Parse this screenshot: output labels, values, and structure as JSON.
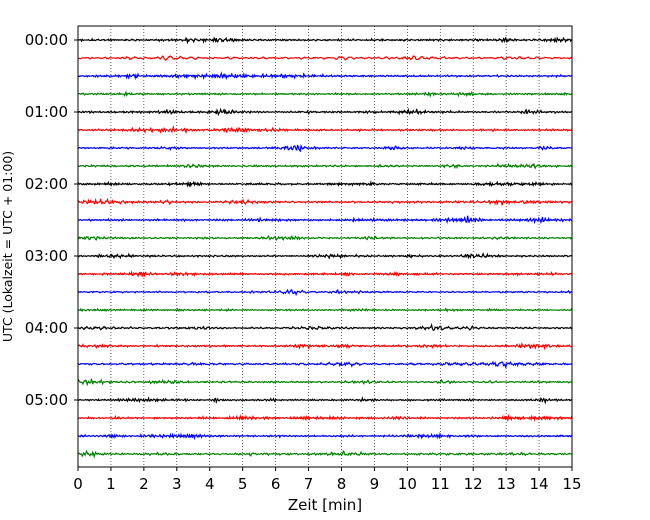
{
  "chart_data": {
    "type": "line",
    "title": "",
    "xlabel": "Zeit  [min]",
    "ylabel": "UTC (Lokalzeit = UTC + 01:00)",
    "xlim": [
      0,
      15
    ],
    "x_ticks": [
      0,
      1,
      2,
      3,
      4,
      5,
      6,
      7,
      8,
      9,
      10,
      11,
      12,
      13,
      14,
      15
    ],
    "x_tick_labels": [
      "0",
      "1",
      "2",
      "3",
      "4",
      "5",
      "6",
      "7",
      "8",
      "9",
      "10",
      "11",
      "12",
      "13",
      "14",
      "15"
    ],
    "y_tick_labels": [
      "00:00",
      "01:00",
      "02:00",
      "03:00",
      "04:00",
      "05:00"
    ],
    "grid": "vertical dotted",
    "trace_interval_min": 15,
    "trace_count": 24,
    "trace_colors": [
      "#000000",
      "#ff0000",
      "#0000ff",
      "#008000"
    ],
    "series": [
      {
        "start": "00:00",
        "color": "#000000"
      },
      {
        "start": "00:15",
        "color": "#ff0000"
      },
      {
        "start": "00:30",
        "color": "#0000ff"
      },
      {
        "start": "00:45",
        "color": "#008000"
      },
      {
        "start": "01:00",
        "color": "#000000"
      },
      {
        "start": "01:15",
        "color": "#ff0000"
      },
      {
        "start": "01:30",
        "color": "#0000ff"
      },
      {
        "start": "01:45",
        "color": "#008000"
      },
      {
        "start": "02:00",
        "color": "#000000"
      },
      {
        "start": "02:15",
        "color": "#ff0000"
      },
      {
        "start": "02:30",
        "color": "#0000ff"
      },
      {
        "start": "02:45",
        "color": "#008000"
      },
      {
        "start": "03:00",
        "color": "#000000"
      },
      {
        "start": "03:15",
        "color": "#ff0000"
      },
      {
        "start": "03:30",
        "color": "#0000ff"
      },
      {
        "start": "03:45",
        "color": "#008000"
      },
      {
        "start": "04:00",
        "color": "#000000"
      },
      {
        "start": "04:15",
        "color": "#ff0000"
      },
      {
        "start": "04:30",
        "color": "#0000ff"
      },
      {
        "start": "04:45",
        "color": "#008000"
      },
      {
        "start": "05:00",
        "color": "#000000"
      },
      {
        "start": "05:15",
        "color": "#ff0000"
      },
      {
        "start": "05:30",
        "color": "#0000ff"
      },
      {
        "start": "05:45",
        "color": "#008000"
      }
    ]
  }
}
